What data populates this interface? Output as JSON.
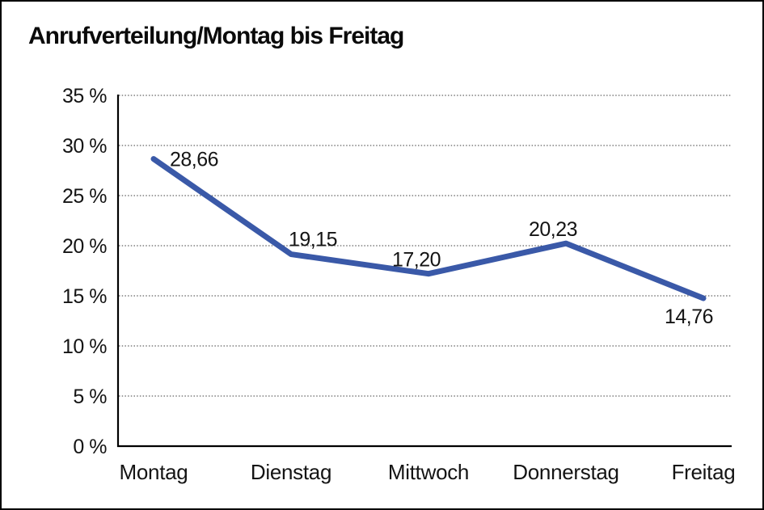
{
  "window": {
    "background": "#ffffff",
    "border_color": "#000000"
  },
  "chart_data": {
    "type": "line",
    "title": "Anrufverteilung/Montag bis Freitag",
    "categories": [
      "Montag",
      "Dienstag",
      "Mittwoch",
      "Donnerstag",
      "Freitag"
    ],
    "series": [
      {
        "name": "Anrufverteilung",
        "values": [
          28.66,
          19.15,
          17.2,
          20.23,
          14.76
        ]
      }
    ],
    "point_labels": [
      "28,66",
      "19,15",
      "17,20",
      "20,23",
      "14,76"
    ],
    "y_ticks": [
      {
        "value": 35,
        "label": "35 %"
      },
      {
        "value": 30,
        "label": "30 %"
      },
      {
        "value": 25,
        "label": "25 %"
      },
      {
        "value": 20,
        "label": "20 %"
      },
      {
        "value": 15,
        "label": "15 %"
      },
      {
        "value": 10,
        "label": "10 %"
      },
      {
        "value": 5,
        "label": "5 %"
      },
      {
        "value": 0,
        "label": "0 %"
      }
    ],
    "ylim": [
      0,
      35
    ],
    "xlabel": "",
    "ylabel": "",
    "grid": "horizontal-dotted",
    "legend_position": "none",
    "line_color": "#3A59A8",
    "label_color": "#141414"
  }
}
